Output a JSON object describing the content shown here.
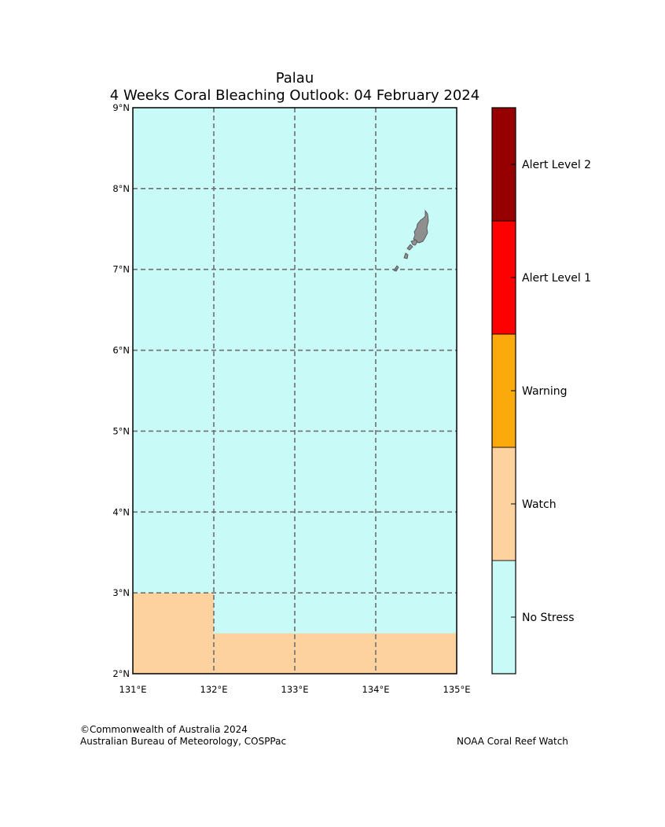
{
  "title": {
    "line1": "Palau",
    "line2": "4 Weeks Coral Bleaching Outlook: 04 February 2024"
  },
  "map": {
    "lon_range": [
      131,
      135
    ],
    "lat_range": [
      2,
      9
    ],
    "lon_ticks": [
      {
        "value": 131,
        "label": "131°E"
      },
      {
        "value": 132,
        "label": "132°E"
      },
      {
        "value": 133,
        "label": "133°E"
      },
      {
        "value": 134,
        "label": "134°E"
      },
      {
        "value": 135,
        "label": "135°E"
      }
    ],
    "lat_ticks": [
      {
        "value": 2,
        "label": "2°N"
      },
      {
        "value": 3,
        "label": "3°N"
      },
      {
        "value": 4,
        "label": "4°N"
      },
      {
        "value": 5,
        "label": "5°N"
      },
      {
        "value": 6,
        "label": "6°N"
      },
      {
        "value": 7,
        "label": "7°N"
      },
      {
        "value": 8,
        "label": "8°N"
      },
      {
        "value": 9,
        "label": "9°N"
      }
    ],
    "gridlines": "dashed",
    "background_level": "No Stress",
    "regions": [
      {
        "level": "Watch",
        "lon": [
          131,
          132
        ],
        "lat": [
          2,
          3
        ]
      },
      {
        "level": "Watch",
        "lon": [
          132,
          135
        ],
        "lat": [
          2,
          2.5
        ]
      }
    ],
    "land_color": "#8f8f8f",
    "land_name": "palau-islands"
  },
  "legend": {
    "levels": [
      {
        "label": "No Stress",
        "color": "#c8faf8"
      },
      {
        "label": "Watch",
        "color": "#fed29e"
      },
      {
        "label": "Warning",
        "color": "#fbaa0c"
      },
      {
        "label": "Alert Level 1",
        "color": "#fe0000"
      },
      {
        "label": "Alert Level 2",
        "color": "#960000"
      }
    ]
  },
  "footer": {
    "copyright": "©Commonwealth of Australia 2024",
    "agency": "Australian Bureau of Meteorology, COSPPac",
    "partner": "NOAA Coral Reef Watch"
  }
}
